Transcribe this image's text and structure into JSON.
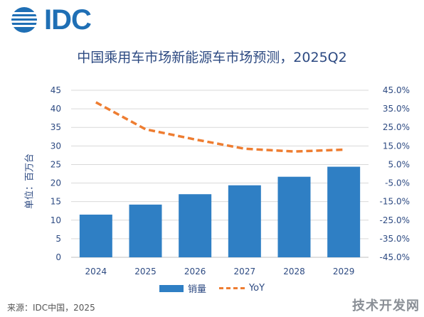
{
  "logo": {
    "text": "IDC"
  },
  "chart_data": {
    "type": "bar",
    "title": "中国乘用车市场新能源车市场预测，2025Q2",
    "ylabel": "单位：百万台",
    "categories": [
      "2024",
      "2025",
      "2026",
      "2027",
      "2028",
      "2029"
    ],
    "series": [
      {
        "name": "销量",
        "type": "bar",
        "axis": "left",
        "values": [
          11.5,
          14.2,
          17.0,
          19.4,
          21.7,
          24.4
        ]
      },
      {
        "name": "YoY",
        "type": "line",
        "style": "dashed",
        "axis": "right",
        "values": [
          38.5,
          24.0,
          18.5,
          13.5,
          12.0,
          13.0
        ]
      }
    ],
    "left_axis": {
      "ylim": [
        0,
        45
      ],
      "ticks": [
        "0",
        "5",
        "10",
        "15",
        "20",
        "25",
        "30",
        "35",
        "40",
        "45"
      ]
    },
    "right_axis": {
      "ylim": [
        -45,
        45
      ],
      "ticks": [
        "-45.0%",
        "-35.0%",
        "-25.0%",
        "-15.0%",
        "-5.0%",
        "5.0%",
        "15.0%",
        "25.0%",
        "35.0%",
        "45.0%"
      ]
    },
    "grid": true,
    "legend": "bottom",
    "colors": {
      "bar": "#2f7fc4",
      "line": "#ee7d31",
      "grid": "#d9d9d9"
    }
  },
  "legend": {
    "bar_label": "销量",
    "line_label": "YoY"
  },
  "source": "来源：IDC中国，2025",
  "watermark": "技术开发网"
}
